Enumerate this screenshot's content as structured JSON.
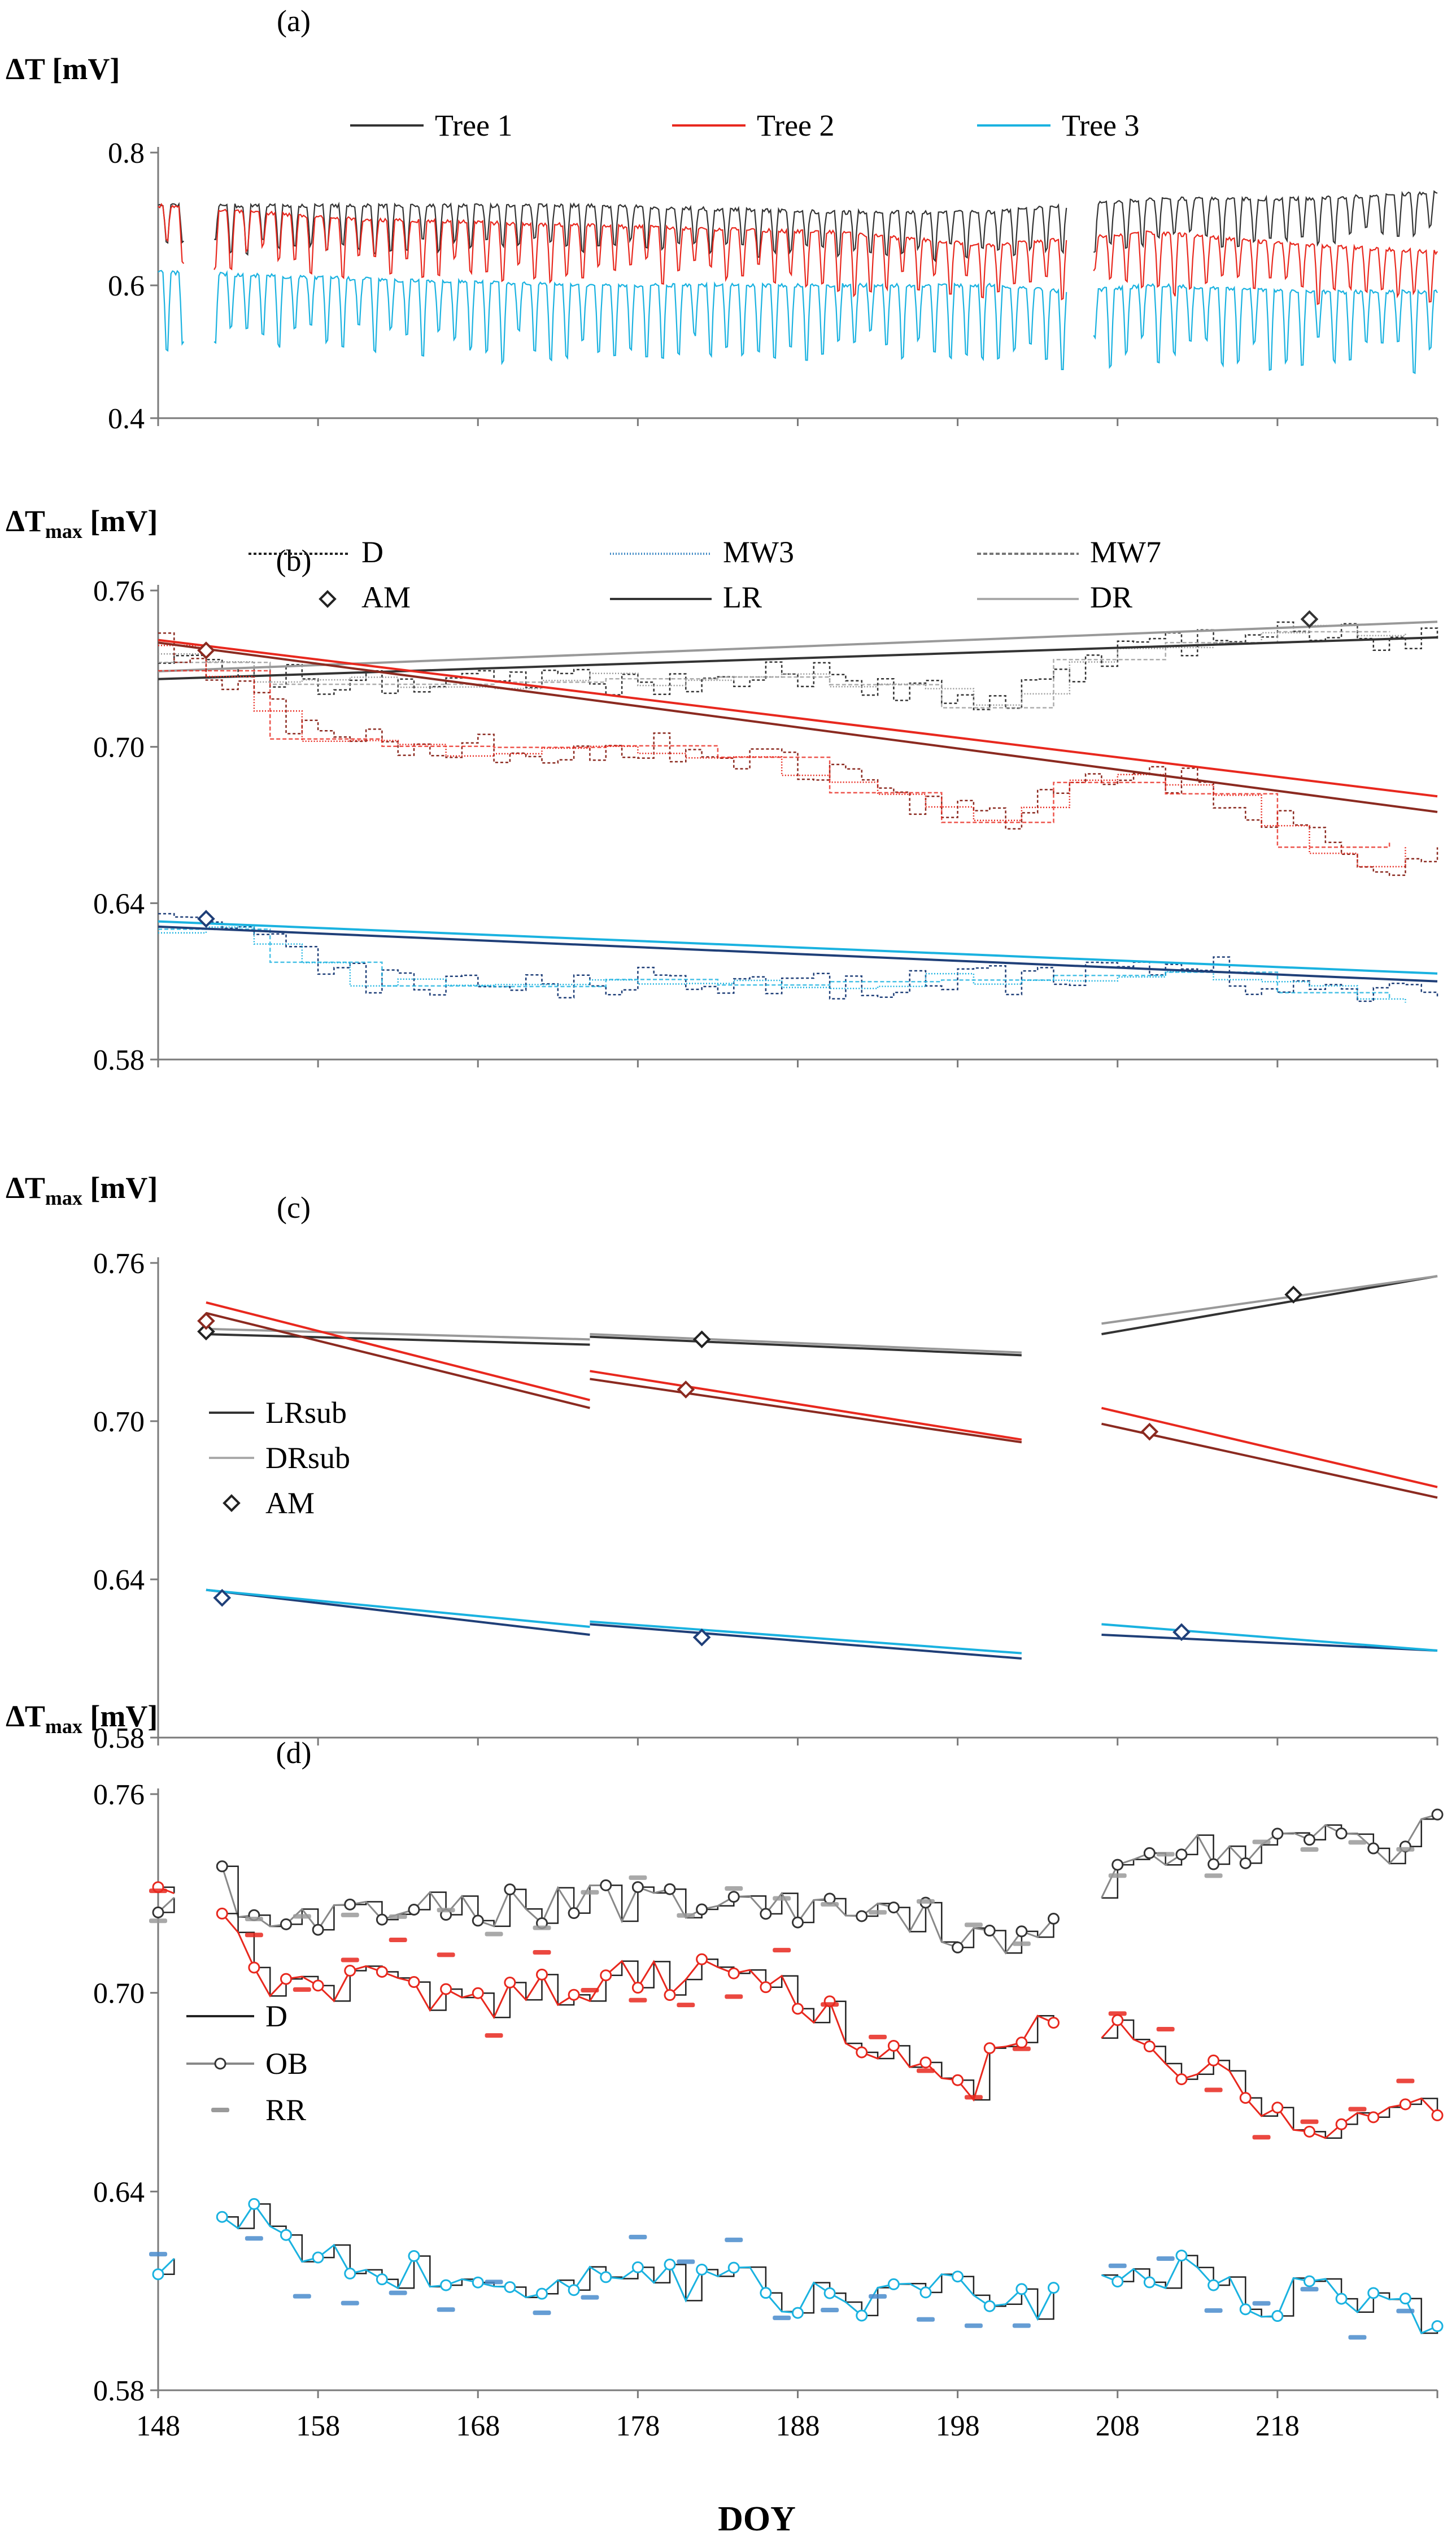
{
  "figure": {
    "xlabel": "DOY"
  },
  "colors": {
    "tree1": "#333333",
    "tree1_light": "#999999",
    "tree2": "#e8281e",
    "tree2_dark": "#8b2a20",
    "tree3": "#1ab2e0",
    "tree3_dark": "#1f3f78",
    "axis": "#7a7a7a"
  },
  "chart_data": [
    {
      "id": "a",
      "type": "line",
      "panel_label": "(a)",
      "ylabel_main": "ΔT",
      "ylabel_sub": "",
      "ylabel_unit": "[mV]",
      "xlim": [
        148,
        228
      ],
      "ylim": [
        0.4,
        0.8
      ],
      "yticks": [
        "0.4",
        "0.6",
        "0.8"
      ],
      "xtick_labels_shown": false,
      "legend": {
        "placement": "top",
        "entries": [
          "Tree 1",
          "Tree 2",
          "Tree 3"
        ]
      },
      "series": [
        {
          "name": "Tree 1",
          "pattern": "diurnal",
          "knots_x": [
            148,
            160,
            175,
            190,
            200,
            205,
            210,
            220,
            228
          ],
          "knots_y": [
            0.72,
            0.72,
            0.72,
            0.71,
            0.71,
            0.72,
            0.73,
            0.73,
            0.74
          ],
          "dips": [
            0.05,
            0.08
          ]
        },
        {
          "name": "Tree 2",
          "pattern": "diurnal",
          "knots_x": [
            148,
            160,
            175,
            190,
            200,
            205,
            210,
            220,
            228
          ],
          "knots_y": [
            0.72,
            0.7,
            0.69,
            0.68,
            0.66,
            0.67,
            0.68,
            0.66,
            0.65
          ],
          "dips": [
            0.05,
            0.1
          ]
        },
        {
          "name": "Tree 3",
          "pattern": "diurnal",
          "knots_x": [
            148,
            160,
            175,
            190,
            200,
            205,
            210,
            220,
            228
          ],
          "knots_y": [
            0.62,
            0.61,
            0.6,
            0.6,
            0.6,
            0.59,
            0.6,
            0.59,
            0.59
          ],
          "dips": [
            0.07,
            0.13
          ]
        }
      ],
      "gaps": [
        [
          149.6,
          151.5
        ],
        [
          204.8,
          206.5
        ]
      ]
    },
    {
      "id": "b",
      "type": "line",
      "panel_label": "(b)",
      "ylabel_main": "ΔT",
      "ylabel_sub": "max",
      "ylabel_unit": "[mV]",
      "xlim": [
        148,
        228
      ],
      "ylim": [
        0.58,
        0.76
      ],
      "yticks": [
        "0.58",
        "0.64",
        "0.70",
        "0.76"
      ],
      "xtick_labels_shown": false,
      "legend": {
        "placement": "top",
        "entries": [
          "D",
          "MW3",
          "MW7",
          "AM",
          "LR",
          "DR"
        ]
      },
      "trees": [
        {
          "tree": "Tree 1",
          "D_knots_x": [
            148,
            158,
            168,
            178,
            188,
            196,
            200,
            204,
            208,
            214,
            220,
            226,
            228
          ],
          "D_knots_y": [
            0.736,
            0.724,
            0.724,
            0.726,
            0.727,
            0.722,
            0.715,
            0.726,
            0.736,
            0.74,
            0.745,
            0.74,
            0.744
          ],
          "AM": {
            "x": 220,
            "y": 0.749
          },
          "LR": [
            [
              148,
              0.726
            ],
            [
              228,
              0.742
            ]
          ],
          "DR": [
            [
              148,
              0.729
            ],
            [
              228,
              0.748
            ]
          ]
        },
        {
          "tree": "Tree 2",
          "D_knots_x": [
            148,
            153,
            158,
            168,
            178,
            186,
            192,
            200,
            206,
            212,
            220,
            224,
            228
          ],
          "D_knots_y": [
            0.74,
            0.722,
            0.703,
            0.699,
            0.701,
            0.696,
            0.684,
            0.671,
            0.686,
            0.688,
            0.664,
            0.654,
            0.664
          ],
          "AM": {
            "x": 151,
            "y": 0.737
          },
          "LR": [
            [
              148,
              0.74
            ],
            [
              228,
              0.675
            ]
          ],
          "DR": [
            [
              148,
              0.741
            ],
            [
              228,
              0.681
            ]
          ]
        },
        {
          "tree": "Tree 3",
          "D_knots_x": [
            148,
            154,
            160,
            168,
            178,
            188,
            196,
            204,
            212,
            220,
            228
          ],
          "D_knots_y": [
            0.632,
            0.628,
            0.612,
            0.606,
            0.611,
            0.608,
            0.611,
            0.61,
            0.616,
            0.606,
            0.603
          ],
          "AM": {
            "x": 151,
            "y": 0.634
          },
          "LR": [
            [
              148,
              0.631
            ],
            [
              228,
              0.61
            ]
          ],
          "DR": [
            [
              148,
              0.633
            ],
            [
              228,
              0.613
            ]
          ]
        }
      ]
    },
    {
      "id": "c",
      "type": "line",
      "panel_label": "(c)",
      "ylabel_main": "ΔT",
      "ylabel_sub": "max",
      "ylabel_unit": "[mV]",
      "xlim": [
        148,
        228
      ],
      "ylim": [
        0.58,
        0.76
      ],
      "yticks": [
        "0.58",
        "0.64",
        "0.70",
        "0.76"
      ],
      "xtick_labels_shown": false,
      "legend": {
        "placement": "left",
        "entries": [
          "LRsub",
          "DRsub",
          "AM"
        ]
      },
      "segments": [
        {
          "tree": "Tree 1",
          "LR": [
            [
              151,
              0.733
            ],
            [
              175,
              0.729
            ]
          ],
          "DR": [
            [
              151,
              0.735
            ],
            [
              175,
              0.731
            ]
          ],
          "AM": {
            "x": 151,
            "y": 0.734
          }
        },
        {
          "tree": "Tree 1",
          "LR": [
            [
              175,
              0.732
            ],
            [
              202,
              0.725
            ]
          ],
          "DR": [
            [
              175,
              0.733
            ],
            [
              202,
              0.726
            ]
          ],
          "AM": {
            "x": 182,
            "y": 0.731
          }
        },
        {
          "tree": "Tree 1",
          "LR": [
            [
              207,
              0.733
            ],
            [
              228,
              0.755
            ]
          ],
          "DR": [
            [
              207,
              0.737
            ],
            [
              228,
              0.755
            ]
          ],
          "AM": {
            "x": 219,
            "y": 0.748
          }
        },
        {
          "tree": "Tree 2",
          "LR": [
            [
              151,
              0.741
            ],
            [
              175,
              0.705
            ]
          ],
          "DR": [
            [
              151,
              0.745
            ],
            [
              175,
              0.708
            ]
          ],
          "AM": {
            "x": 151,
            "y": 0.738
          }
        },
        {
          "tree": "Tree 2",
          "LR": [
            [
              175,
              0.716
            ],
            [
              202,
              0.692
            ]
          ],
          "DR": [
            [
              175,
              0.719
            ],
            [
              202,
              0.693
            ]
          ],
          "AM": {
            "x": 181,
            "y": 0.712
          }
        },
        {
          "tree": "Tree 2",
          "LR": [
            [
              207,
              0.699
            ],
            [
              228,
              0.671
            ]
          ],
          "DR": [
            [
              207,
              0.705
            ],
            [
              228,
              0.675
            ]
          ],
          "AM": {
            "x": 210,
            "y": 0.696
          }
        },
        {
          "tree": "Tree 3",
          "LR": [
            [
              151,
              0.636
            ],
            [
              175,
              0.619
            ]
          ],
          "DR": [
            [
              151,
              0.636
            ],
            [
              175,
              0.622
            ]
          ],
          "AM": {
            "x": 152,
            "y": 0.633
          }
        },
        {
          "tree": "Tree 3",
          "LR": [
            [
              175,
              0.623
            ],
            [
              202,
              0.61
            ]
          ],
          "DR": [
            [
              175,
              0.624
            ],
            [
              202,
              0.612
            ]
          ],
          "AM": {
            "x": 182,
            "y": 0.618
          }
        },
        {
          "tree": "Tree 3",
          "LR": [
            [
              207,
              0.619
            ],
            [
              228,
              0.613
            ]
          ],
          "DR": [
            [
              207,
              0.623
            ],
            [
              228,
              0.613
            ]
          ],
          "AM": {
            "x": 212,
            "y": 0.62
          }
        }
      ]
    },
    {
      "id": "d",
      "type": "line",
      "panel_label": "(d)",
      "ylabel_main": "ΔT",
      "ylabel_sub": "max",
      "ylabel_unit": "[mV]",
      "xlim": [
        148,
        228
      ],
      "ylim": [
        0.58,
        0.76
      ],
      "yticks": [
        "0.58",
        "0.64",
        "0.70",
        "0.76"
      ],
      "xtick_labels_shown": true,
      "xticks": [
        148,
        158,
        168,
        178,
        188,
        198,
        208,
        218
      ],
      "xtick_labels": [
        "148",
        "158",
        "168",
        "178",
        "188",
        "198",
        "208",
        "218"
      ],
      "legend": {
        "placement": "left",
        "entries": [
          "D",
          "OB",
          "RR"
        ]
      },
      "trees": [
        {
          "tree": "Tree 1",
          "knots_x": [
            148,
            150,
            152,
            154,
            160,
            170,
            180,
            190,
            196,
            200,
            204,
            206,
            208,
            212,
            216,
            220,
            224,
            228
          ],
          "knots_y": [
            0.728,
            0.735,
            0.737,
            0.72,
            0.725,
            0.726,
            0.728,
            0.726,
            0.722,
            0.716,
            0.722,
            0.727,
            0.735,
            0.745,
            0.74,
            0.748,
            0.742,
            0.748
          ],
          "rr_offset": 0.004
        },
        {
          "tree": "Tree 2",
          "knots_x": [
            148,
            150,
            152,
            154,
            160,
            168,
            176,
            184,
            188,
            192,
            198,
            202,
            206,
            210,
            214,
            220,
            224,
            228
          ],
          "knots_y": [
            0.728,
            0.73,
            0.725,
            0.705,
            0.703,
            0.696,
            0.704,
            0.706,
            0.7,
            0.684,
            0.668,
            0.688,
            0.694,
            0.682,
            0.675,
            0.66,
            0.664,
            0.664
          ],
          "rr_offset": 0.012
        },
        {
          "tree": "Tree 3",
          "knots_x": [
            148,
            150,
            152,
            156,
            160,
            168,
            176,
            184,
            190,
            196,
            200,
            204,
            208,
            212,
            216,
            220,
            224,
            228
          ],
          "knots_y": [
            0.62,
            0.628,
            0.636,
            0.625,
            0.618,
            0.612,
            0.613,
            0.613,
            0.606,
            0.612,
            0.61,
            0.606,
            0.612,
            0.616,
            0.606,
            0.61,
            0.604,
            0.601
          ],
          "rr_offset": 0.012
        }
      ],
      "gaps": [
        [
          149.5,
          151.5
        ],
        [
          204.8,
          206.3
        ]
      ]
    }
  ]
}
